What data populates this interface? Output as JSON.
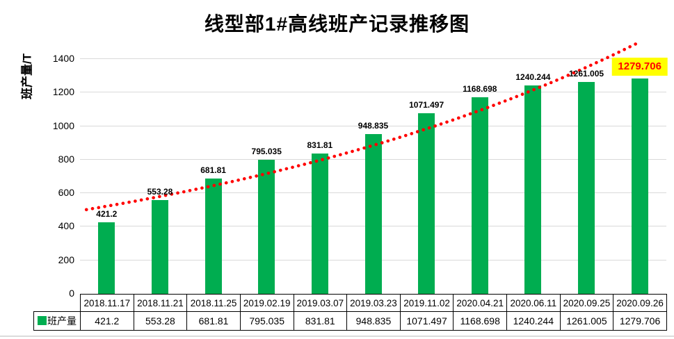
{
  "title": "线型部1#高线班产记录推移图",
  "y_axis": {
    "title": "班产量/T",
    "ticks": [
      0,
      200,
      400,
      600,
      800,
      1000,
      1200,
      1400
    ],
    "max": 1500
  },
  "legend": {
    "label": "班产量"
  },
  "colors": {
    "bar": "#00AD50",
    "grid": "#D9D9D9",
    "trend": "#FF0000",
    "data_label": "#000000",
    "highlight_bg": "#FFFF00",
    "highlight_text": "#FF0000",
    "table_border": "#000000"
  },
  "chart_data": {
    "type": "bar",
    "title": "线型部1#高线班产记录推移图",
    "xlabel": "",
    "ylabel": "班产量/T",
    "ylim": [
      0,
      1500
    ],
    "grid": true,
    "legend_position": "table-left",
    "categories": [
      "2018.11.17",
      "2018.11.21",
      "2018.11.25",
      "2019.02.19",
      "2019.03.07",
      "2019.03.23",
      "2019.11.02",
      "2020.04.21",
      "2020.06.11",
      "2020.09.25",
      "2020.09.26"
    ],
    "series": [
      {
        "name": "班产量",
        "values": [
          421.2,
          553.28,
          681.81,
          795.035,
          831.81,
          948.835,
          1071.497,
          1168.698,
          1240.244,
          1261.005,
          1279.706
        ]
      }
    ],
    "data_labels": [
      "421.2",
      "553.28",
      "681.81",
      "795.035",
      "831.81",
      "948.835",
      "1071.497",
      "1168.698",
      "1240.244",
      "1261.005",
      "1279.706"
    ],
    "trendline": {
      "type": "exponential",
      "style": "dotted",
      "color": "#FF0000"
    },
    "highlight": {
      "index": 10,
      "background": "#FFFF00",
      "color": "#FF0000"
    }
  }
}
